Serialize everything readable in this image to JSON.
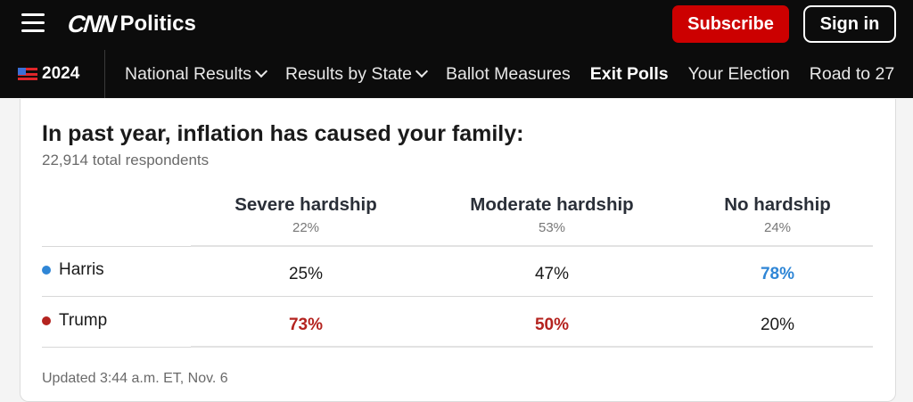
{
  "header": {
    "logo_text": "CNN",
    "section": "Politics",
    "subscribe_label": "Subscribe",
    "signin_label": "Sign in"
  },
  "nav": {
    "year": "2024",
    "items": [
      {
        "label": "National Results",
        "dropdown": true
      },
      {
        "label": "Results by State",
        "dropdown": true
      },
      {
        "label": "Ballot Measures",
        "dropdown": false
      },
      {
        "label": "Exit Polls",
        "dropdown": false,
        "active": true
      },
      {
        "label": "Your Election",
        "dropdown": false
      },
      {
        "label": "Road to 27",
        "dropdown": false
      }
    ]
  },
  "poll": {
    "question": "In past year, inflation has caused your family:",
    "respondents": "22,914 total respondents",
    "columns": [
      {
        "name": "Severe hardship",
        "share": "22%"
      },
      {
        "name": "Moderate hardship",
        "share": "53%"
      },
      {
        "name": "No hardship",
        "share": "24%"
      }
    ],
    "rows": [
      {
        "candidate": "Harris",
        "values": [
          "25%",
          "47%",
          "78%"
        ]
      },
      {
        "candidate": "Trump",
        "values": [
          "73%",
          "50%",
          "20%"
        ]
      }
    ],
    "updated": "Updated 3:44 a.m. ET, Nov. 6"
  },
  "colors": {
    "harris": "#2f86d6",
    "trump": "#b4231f",
    "subscribe": "#cc0000"
  }
}
